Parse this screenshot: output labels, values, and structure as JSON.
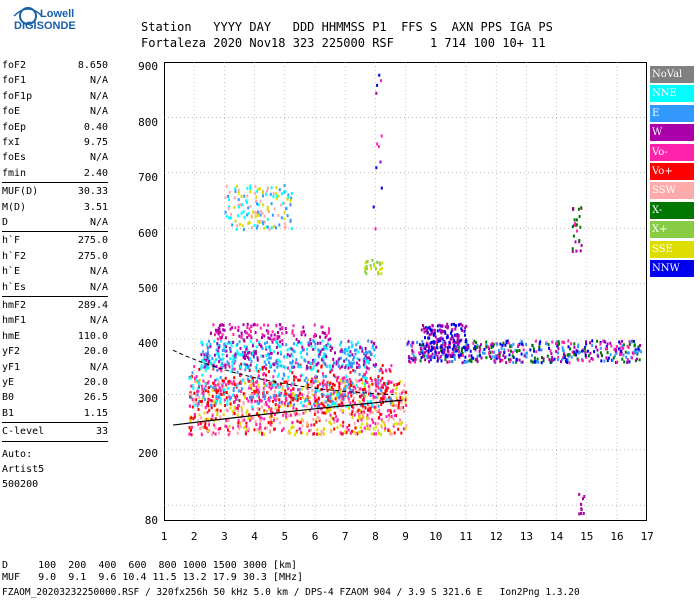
{
  "logo": {
    "line1": "Lowell",
    "line2": "DIGISONDE"
  },
  "header": {
    "row1": "Station   YYYY DAY   DDD HHMMSS P1  FFS S  AXN PPS IGA PS",
    "row2": "Fortaleza 2020 Nov18 323 225000 RSF     1 714 100 10+ 11"
  },
  "params_group1": [
    {
      "k": "foF2",
      "v": "8.650"
    },
    {
      "k": "foF1",
      "v": "N/A"
    },
    {
      "k": "foF1p",
      "v": "N/A"
    },
    {
      "k": "foE",
      "v": "N/A"
    },
    {
      "k": "foEp",
      "v": "0.40"
    },
    {
      "k": "fxI",
      "v": "9.75"
    },
    {
      "k": "foEs",
      "v": "N/A"
    },
    {
      "k": "fmin",
      "v": "2.40"
    }
  ],
  "params_group2": [
    {
      "k": "MUF(D)",
      "v": "30.33"
    },
    {
      "k": "M(D)",
      "v": "3.51"
    },
    {
      "k": "D",
      "v": "N/A"
    }
  ],
  "params_group3": [
    {
      "k": "h`F",
      "v": "275.0"
    },
    {
      "k": "h`F2",
      "v": "275.0"
    },
    {
      "k": "h`E",
      "v": "N/A"
    },
    {
      "k": "h`Es",
      "v": "N/A"
    }
  ],
  "params_group4": [
    {
      "k": "hmF2",
      "v": "289.4"
    },
    {
      "k": "hmF1",
      "v": "N/A"
    },
    {
      "k": "hmE",
      "v": "110.0"
    },
    {
      "k": "yF2",
      "v": "20.0"
    },
    {
      "k": "yF1",
      "v": "N/A"
    },
    {
      "k": "yE",
      "v": "20.0"
    },
    {
      "k": "B0",
      "v": "26.5"
    },
    {
      "k": "B1",
      "v": "1.15"
    }
  ],
  "clevel": {
    "k": "C-level",
    "v": "33"
  },
  "auto": {
    "line1": "Auto:",
    "line2": "Artist5",
    "line3": "500200"
  },
  "yticks": [
    "900",
    "800",
    "700",
    "600",
    "500",
    "400",
    "300",
    "200",
    "80"
  ],
  "xticks": [
    "1",
    "2",
    "3",
    "4",
    "5",
    "6",
    "7",
    "8",
    "9",
    "10",
    "11",
    "12",
    "13",
    "14",
    "15",
    "16",
    "17"
  ],
  "legend": [
    {
      "label": "NoVal",
      "color": "#808080"
    },
    {
      "label": "NNE",
      "color": "#00ffff"
    },
    {
      "label": "E",
      "color": "#3399ff"
    },
    {
      "label": "W",
      "color": "#aa00aa"
    },
    {
      "label": "Vo-",
      "color": "#ff22aa"
    },
    {
      "label": "Vo+",
      "color": "#ff0000"
    },
    {
      "label": "SSW",
      "color": "#ffaaaa"
    },
    {
      "label": "X-",
      "color": "#007700"
    },
    {
      "label": "X+",
      "color": "#88cc44"
    },
    {
      "label": "SSE",
      "color": "#dddd00"
    },
    {
      "label": "NNW",
      "color": "#0000ee"
    }
  ],
  "footer": {
    "d_row": "D     100  200  400  600  800 1000 1500 3000 [km]",
    "muf_row": "MUF   9.0  9.1  9.6 10.4 11.5 13.2 17.9 30.3 [MHz]",
    "file_row": "FZAOM_20203232250000.RSF / 320fx256h 50 kHz 5.0 km / DPS-4 FZAOM 904 / 3.9 S 321.6 E   Ion2Png 1.3.20"
  }
}
